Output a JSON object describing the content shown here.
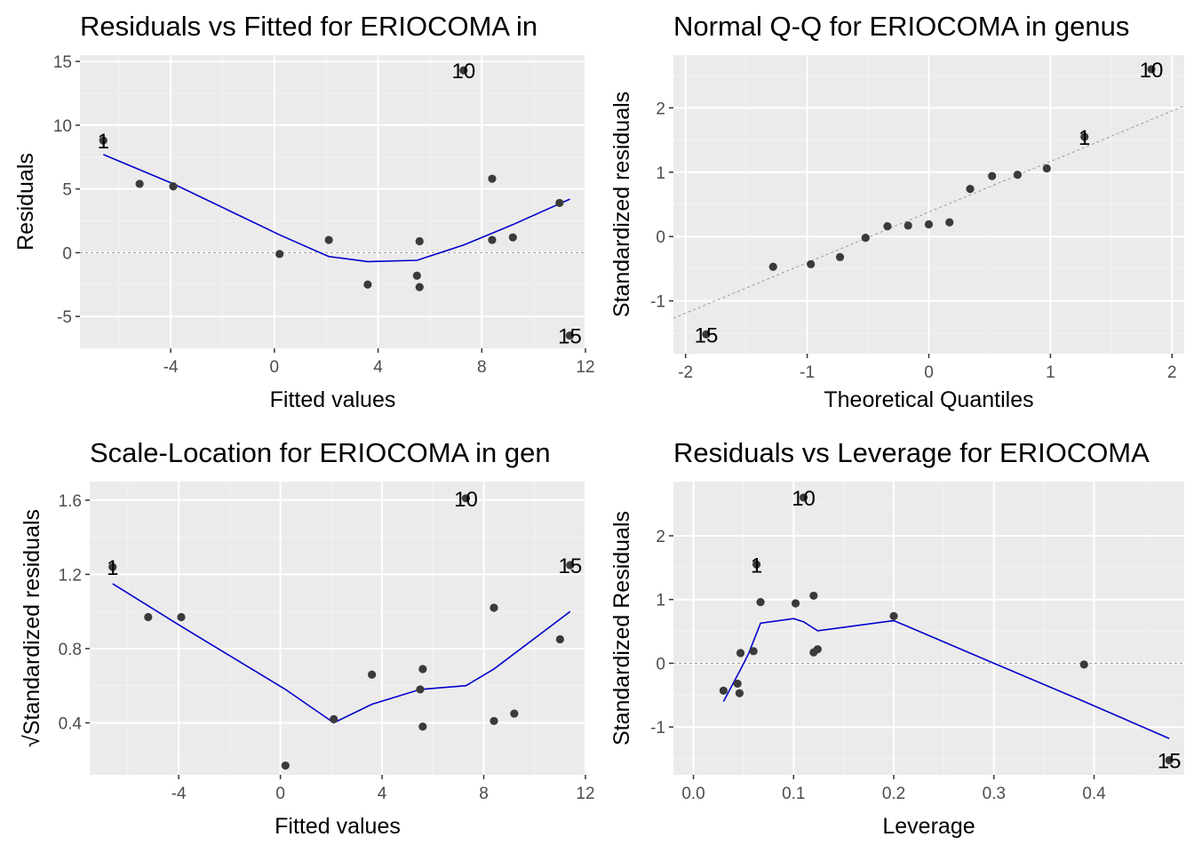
{
  "colors": {
    "panel": "#ebebeb",
    "grid_major": "#ffffff",
    "grid_minor": "#f3f3f3",
    "points": "#3a3a3a",
    "smooth": "#0000cd",
    "ref_line": "#999999"
  },
  "chart_data": [
    {
      "type": "scatter",
      "title": "Residuals vs Fitted for ERIOCOMA in",
      "xlabel": "Fitted values",
      "ylabel": "Residuals",
      "xlim": [
        -7.5,
        12.0
      ],
      "ylim": [
        -7.5,
        15.5
      ],
      "xticks": [
        -4,
        0,
        4,
        8,
        12
      ],
      "xtick_labels": [
        "-4",
        "0",
        "4",
        "8",
        "12"
      ],
      "yticks": [
        -5,
        0,
        5,
        10,
        15
      ],
      "ytick_labels": [
        "-5",
        "0",
        "5",
        "10",
        "15"
      ],
      "ref_line": {
        "type": "h",
        "value": 0
      },
      "points": [
        {
          "x": -6.6,
          "y": 8.8
        },
        {
          "x": -5.2,
          "y": 5.4
        },
        {
          "x": -3.9,
          "y": 5.2
        },
        {
          "x": 0.2,
          "y": -0.1
        },
        {
          "x": 2.1,
          "y": 1.0
        },
        {
          "x": 3.6,
          "y": -2.5
        },
        {
          "x": 5.5,
          "y": -1.8
        },
        {
          "x": 5.6,
          "y": 0.9
        },
        {
          "x": 5.6,
          "y": -2.7
        },
        {
          "x": 7.3,
          "y": 14.3
        },
        {
          "x": 8.4,
          "y": 5.8
        },
        {
          "x": 8.4,
          "y": 1.0
        },
        {
          "x": 9.2,
          "y": 1.2
        },
        {
          "x": 11.0,
          "y": 3.9
        },
        {
          "x": 11.4,
          "y": -6.5
        }
      ],
      "smooth": [
        {
          "x": -6.6,
          "y": 7.7
        },
        {
          "x": -3.9,
          "y": 5.4
        },
        {
          "x": 0.2,
          "y": 1.4
        },
        {
          "x": 2.1,
          "y": -0.3
        },
        {
          "x": 3.6,
          "y": -0.7
        },
        {
          "x": 5.5,
          "y": -0.6
        },
        {
          "x": 7.3,
          "y": 0.6
        },
        {
          "x": 9.2,
          "y": 2.2
        },
        {
          "x": 11.4,
          "y": 4.2
        }
      ],
      "labels": [
        {
          "text": "10",
          "x": 7.3,
          "y": 14.3
        },
        {
          "text": "1",
          "x": -6.6,
          "y": 8.8
        },
        {
          "text": "15",
          "x": 11.4,
          "y": -6.5
        }
      ]
    },
    {
      "type": "scatter",
      "title": "Normal Q-Q for ERIOCOMA in genus",
      "xlabel": "Theoretical Quantiles",
      "ylabel": "Standardized residuals",
      "xlim": [
        -2.1,
        2.1
      ],
      "ylim": [
        -1.82,
        2.82
      ],
      "xticks": [
        -2,
        -1,
        0,
        1,
        2
      ],
      "xtick_labels": [
        "-2",
        "-1",
        "0",
        "1",
        "2"
      ],
      "yticks": [
        -1,
        0,
        1,
        2
      ],
      "ytick_labels": [
        "-1",
        "0",
        "1",
        "2"
      ],
      "ref_line": {
        "type": "seg",
        "x1": -2.1,
        "y1": -1.27,
        "x2": 2.1,
        "y2": 2.03
      },
      "points": [
        {
          "x": -1.83,
          "y": -1.52
        },
        {
          "x": -1.28,
          "y": -0.47
        },
        {
          "x": -0.97,
          "y": -0.43
        },
        {
          "x": -0.73,
          "y": -0.32
        },
        {
          "x": -0.52,
          "y": -0.02
        },
        {
          "x": -0.34,
          "y": 0.16
        },
        {
          "x": -0.17,
          "y": 0.17
        },
        {
          "x": 0.0,
          "y": 0.19
        },
        {
          "x": 0.17,
          "y": 0.22
        },
        {
          "x": 0.34,
          "y": 0.74
        },
        {
          "x": 0.52,
          "y": 0.94
        },
        {
          "x": 0.73,
          "y": 0.96
        },
        {
          "x": 0.97,
          "y": 1.06
        },
        {
          "x": 1.28,
          "y": 1.55
        },
        {
          "x": 1.83,
          "y": 2.6
        }
      ],
      "labels": [
        {
          "text": "10",
          "x": 1.83,
          "y": 2.6
        },
        {
          "text": "1",
          "x": 1.28,
          "y": 1.55
        },
        {
          "text": "15",
          "x": -1.83,
          "y": -1.52
        }
      ]
    },
    {
      "type": "scatter",
      "title": "Scale-Location for ERIOCOMA in gen",
      "xlabel": "Fitted values",
      "ylabel": "Standardized residuals",
      "ylabel_prefix": "√",
      "xlim": [
        -7.5,
        12.0
      ],
      "ylim": [
        0.12,
        1.7
      ],
      "xticks": [
        -4,
        0,
        4,
        8,
        12
      ],
      "xtick_labels": [
        "-4",
        "0",
        "4",
        "8",
        "12"
      ],
      "yticks": [
        0.4,
        0.8,
        1.2,
        1.6
      ],
      "ytick_labels": [
        "0.4",
        "0.8",
        "1.2",
        "1.6"
      ],
      "points": [
        {
          "x": -6.6,
          "y": 1.24
        },
        {
          "x": -5.2,
          "y": 0.97
        },
        {
          "x": -3.9,
          "y": 0.97
        },
        {
          "x": 0.2,
          "y": 0.17
        },
        {
          "x": 2.1,
          "y": 0.42
        },
        {
          "x": 3.6,
          "y": 0.66
        },
        {
          "x": 5.5,
          "y": 0.58
        },
        {
          "x": 5.6,
          "y": 0.69
        },
        {
          "x": 5.6,
          "y": 0.38
        },
        {
          "x": 7.3,
          "y": 1.61
        },
        {
          "x": 8.4,
          "y": 1.02
        },
        {
          "x": 8.4,
          "y": 0.41
        },
        {
          "x": 9.2,
          "y": 0.45
        },
        {
          "x": 11.0,
          "y": 0.85
        },
        {
          "x": 11.4,
          "y": 1.25
        }
      ],
      "smooth": [
        {
          "x": -6.6,
          "y": 1.15
        },
        {
          "x": -3.9,
          "y": 0.92
        },
        {
          "x": 0.2,
          "y": 0.58
        },
        {
          "x": 2.1,
          "y": 0.4
        },
        {
          "x": 3.6,
          "y": 0.5
        },
        {
          "x": 5.5,
          "y": 0.58
        },
        {
          "x": 7.3,
          "y": 0.6
        },
        {
          "x": 8.4,
          "y": 0.69
        },
        {
          "x": 11.4,
          "y": 1.0
        }
      ],
      "labels": [
        {
          "text": "10",
          "x": 7.3,
          "y": 1.61
        },
        {
          "text": "1",
          "x": -6.6,
          "y": 1.24
        },
        {
          "text": "15",
          "x": 11.4,
          "y": 1.25
        }
      ]
    },
    {
      "type": "scatter",
      "title": "Residuals vs Leverage for ERIOCOMA",
      "xlabel": "Leverage",
      "ylabel": "Standardized Residuals",
      "xlim": [
        -0.02,
        0.49
      ],
      "ylim": [
        -1.75,
        2.85
      ],
      "xticks": [
        0.0,
        0.1,
        0.2,
        0.3,
        0.4
      ],
      "xtick_labels": [
        "0.0",
        "0.1",
        "0.2",
        "0.3",
        "0.4"
      ],
      "yticks": [
        -1,
        0,
        1,
        2
      ],
      "ytick_labels": [
        "-1",
        "0",
        "1",
        "2"
      ],
      "ref_line": {
        "type": "h",
        "value": 0
      },
      "points": [
        {
          "x": 0.03,
          "y": -0.43
        },
        {
          "x": 0.044,
          "y": -0.32
        },
        {
          "x": 0.046,
          "y": -0.47
        },
        {
          "x": 0.047,
          "y": 0.16
        },
        {
          "x": 0.06,
          "y": 0.19
        },
        {
          "x": 0.063,
          "y": 1.55
        },
        {
          "x": 0.067,
          "y": 0.96
        },
        {
          "x": 0.102,
          "y": 0.94
        },
        {
          "x": 0.11,
          "y": 2.6
        },
        {
          "x": 0.12,
          "y": 1.06
        },
        {
          "x": 0.12,
          "y": 0.17
        },
        {
          "x": 0.124,
          "y": 0.22
        },
        {
          "x": 0.2,
          "y": 0.74
        },
        {
          "x": 0.39,
          "y": -0.02
        },
        {
          "x": 0.475,
          "y": -1.52
        }
      ],
      "smooth": [
        {
          "x": 0.03,
          "y": -0.6
        },
        {
          "x": 0.047,
          "y": -0.1
        },
        {
          "x": 0.055,
          "y": 0.15
        },
        {
          "x": 0.067,
          "y": 0.63
        },
        {
          "x": 0.1,
          "y": 0.7
        },
        {
          "x": 0.11,
          "y": 0.65
        },
        {
          "x": 0.124,
          "y": 0.51
        },
        {
          "x": 0.2,
          "y": 0.67
        },
        {
          "x": 0.3,
          "y": 0.0
        },
        {
          "x": 0.39,
          "y": -0.6
        },
        {
          "x": 0.475,
          "y": -1.18
        }
      ],
      "labels": [
        {
          "text": "10",
          "x": 0.11,
          "y": 2.6
        },
        {
          "text": "1",
          "x": 0.063,
          "y": 1.55
        },
        {
          "text": "15",
          "x": 0.475,
          "y": -1.52
        }
      ]
    }
  ]
}
